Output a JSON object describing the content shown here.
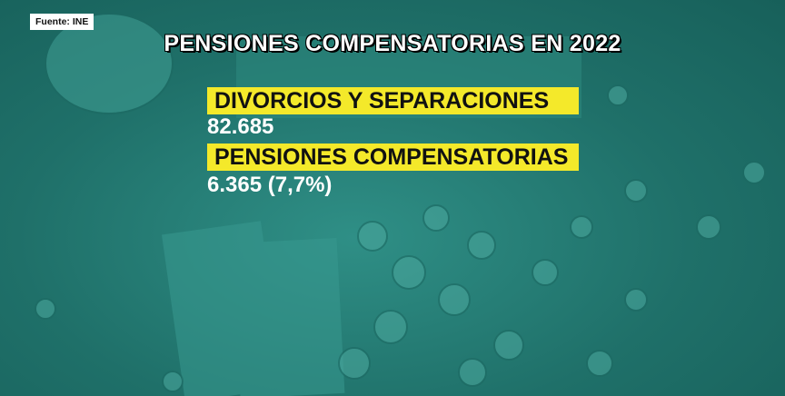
{
  "source": "Fuente: INE",
  "title": "PENSIONES COMPENSATORIAS EN 2022",
  "items": [
    {
      "label": "DIVORCIOS Y SEPARACIONES",
      "value": "82.685"
    },
    {
      "label": "PENSIONES COMPENSATORIAS",
      "value": "6.365 (7,7%)"
    }
  ]
}
